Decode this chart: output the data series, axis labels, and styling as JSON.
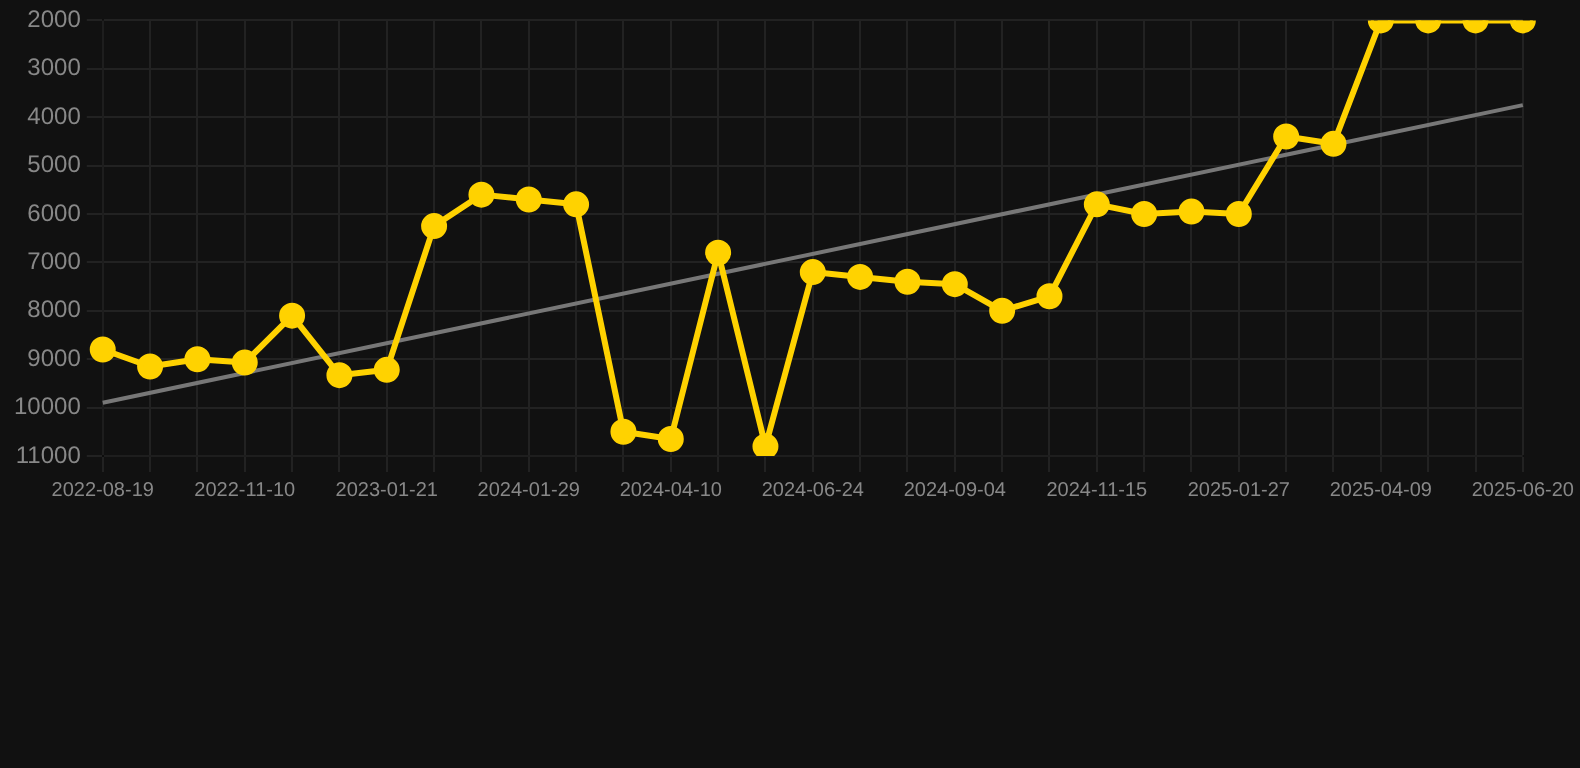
{
  "chart_data": {
    "type": "line",
    "categories": [
      "2022-08-19",
      null,
      null,
      "2022-11-10",
      null,
      null,
      "2023-01-21",
      null,
      null,
      "2024-01-29",
      null,
      null,
      "2024-04-10",
      null,
      null,
      "2024-06-24",
      null,
      null,
      "2024-09-04",
      null,
      null,
      "2024-11-15",
      null,
      null,
      "2025-01-27",
      null,
      null,
      "2025-04-09",
      null,
      null,
      "2025-06-20"
    ],
    "series": [
      {
        "color": "#ffd200",
        "values": [
          8800,
          9150,
          9000,
          9070,
          8100,
          9330,
          9220,
          6250,
          5600,
          5700,
          5800,
          10500,
          10650,
          6800,
          10800,
          7200,
          7300,
          7400,
          7450,
          8000,
          7700,
          5800,
          6000,
          5950,
          6000,
          4400,
          4550,
          2000,
          2000,
          2000,
          2000
        ]
      },
      {
        "type": "line",
        "color": "#777777",
        "marker": "none",
        "values": [
          9900,
          null,
          null,
          null,
          null,
          null,
          null,
          null,
          null,
          null,
          null,
          null,
          null,
          null,
          null,
          null,
          null,
          null,
          null,
          null,
          null,
          null,
          null,
          null,
          null,
          null,
          null,
          null,
          null,
          null,
          3750
        ]
      }
    ],
    "ylim": [
      11000,
      2000
    ],
    "yticks": [
      2000,
      3000,
      4000,
      5000,
      6000,
      7000,
      8000,
      9000,
      10000,
      11000
    ],
    "grid": true,
    "marker": "circle",
    "line_style": "solid",
    "legend": false
  }
}
